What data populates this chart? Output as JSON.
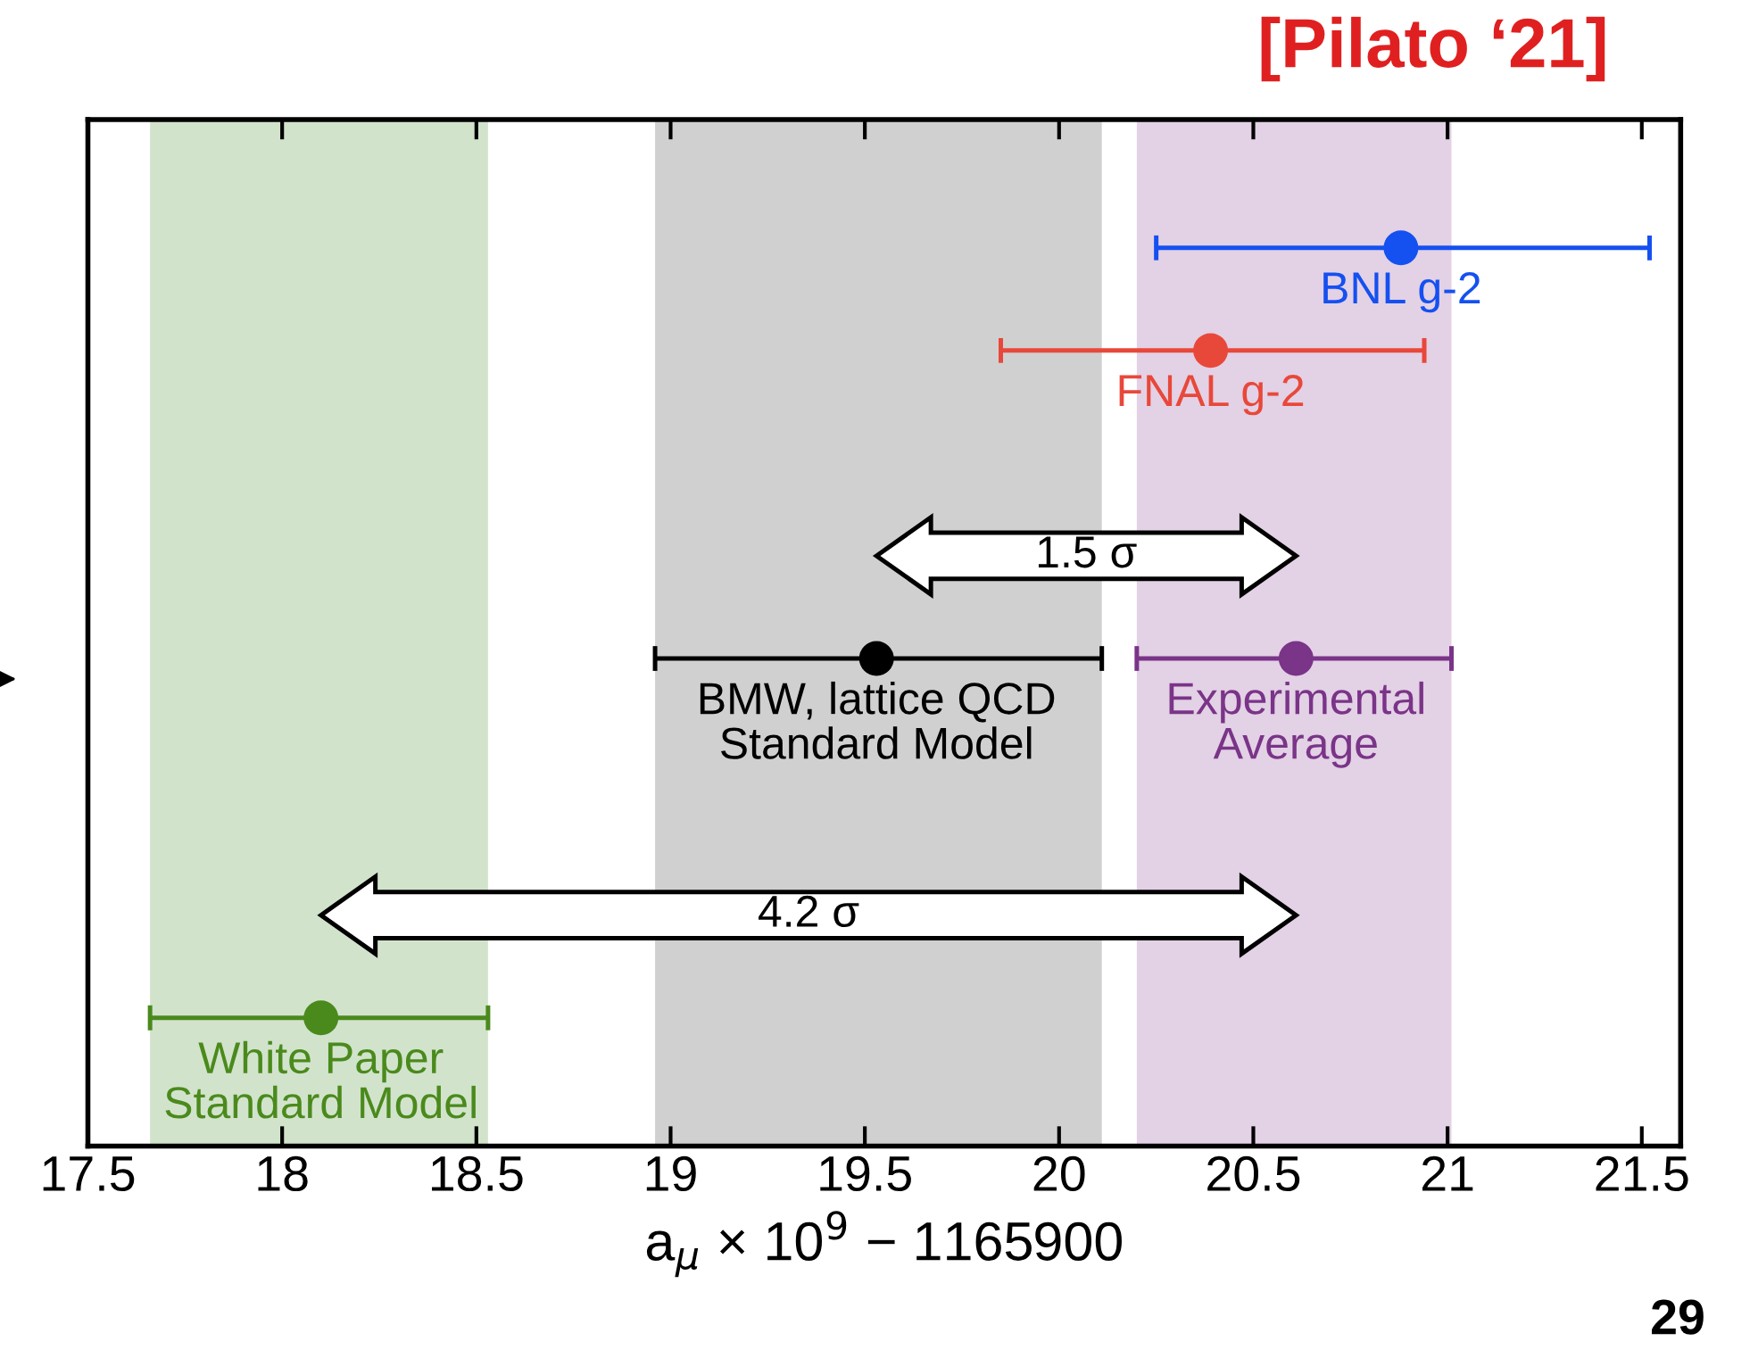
{
  "chart_data": {
    "type": "scatter",
    "orientation": "horizontal",
    "xlabel": "a$_{μ}$ × 10$^{9}$ − 1165900",
    "categories": [
      null,
      null,
      null,
      null,
      null,
      null,
      null,
      null,
      null,
      null,
      null,
      null,
      null,
      null,
      null,
      null,
      null,
      null,
      null,
      null
    ],
    "xlim": [
      17.5,
      21.6
    ],
    "xticks": [
      17.5,
      18,
      18.5,
      19,
      19.5,
      20,
      20.5,
      21,
      21.5
    ],
    "tick_labels": "x",
    "grid": false,
    "marker": "circle",
    "series": [
      {
        "name": "BNL g-2",
        "color": "#1550f0",
        "values": [
          null,
          null,
          20.88,
          null,
          null,
          null,
          null,
          null,
          null,
          null,
          null,
          null,
          null,
          null,
          null,
          null,
          null,
          null,
          null,
          null
        ],
        "errors": [
          null,
          null,
          [
            20.25,
            21.52
          ],
          null,
          null,
          null,
          null,
          null,
          null,
          null,
          null,
          null,
          null,
          null,
          null,
          null,
          null,
          null,
          null,
          null
        ]
      },
      {
        "name": "FNAL g-2",
        "color": "#e8483a",
        "values": [
          null,
          null,
          null,
          null,
          20.39,
          null,
          null,
          null,
          null,
          null,
          null,
          null,
          null,
          null,
          null,
          null,
          null,
          null,
          null,
          null
        ],
        "errors": [
          null,
          null,
          null,
          null,
          [
            19.85,
            20.94
          ],
          null,
          null,
          null,
          null,
          null,
          null,
          null,
          null,
          null,
          null,
          null,
          null,
          null,
          null,
          null
        ]
      },
      {
        "name": "Experimental\nAverage",
        "color": "#7a3488",
        "values": [
          null,
          null,
          null,
          null,
          null,
          null,
          null,
          null,
          null,
          null,
          20.61,
          null,
          null,
          null,
          null,
          null,
          null,
          null,
          null,
          null
        ],
        "errors": [
          null,
          null,
          null,
          null,
          null,
          null,
          null,
          null,
          null,
          null,
          [
            20.2,
            21.01
          ],
          null,
          null,
          null,
          null,
          null,
          null,
          null,
          null,
          null
        ]
      },
      {
        "name": "BMW, lattice QCD\nStandard Model",
        "color": "#000000",
        "values": [
          null,
          null,
          null,
          null,
          null,
          null,
          null,
          null,
          null,
          null,
          19.53,
          null,
          null,
          null,
          null,
          null,
          null,
          null,
          null,
          null
        ],
        "errors": [
          null,
          null,
          null,
          null,
          null,
          null,
          null,
          null,
          null,
          null,
          [
            18.96,
            20.11
          ],
          null,
          null,
          null,
          null,
          null,
          null,
          null,
          null,
          null
        ]
      },
      {
        "name": "White Paper\nStandard Model",
        "color": "#4a8a1c",
        "values": [
          null,
          null,
          null,
          null,
          null,
          null,
          null,
          null,
          null,
          null,
          null,
          null,
          null,
          null,
          null,
          null,
          null,
          18.1,
          null,
          null
        ],
        "errors": [
          null,
          null,
          null,
          null,
          null,
          null,
          null,
          null,
          null,
          null,
          null,
          null,
          null,
          null,
          null,
          null,
          null,
          [
            17.66,
            18.53
          ],
          null,
          null
        ]
      }
    ],
    "bands": [
      {
        "axis": "x",
        "from": 17.66,
        "to": 18.53,
        "color": "#d2e3cc"
      },
      {
        "axis": "x",
        "from": 18.96,
        "to": 20.11,
        "color": "#d0d0d0"
      },
      {
        "axis": "x",
        "from": 20.2,
        "to": 21.01,
        "color": "#e3d1e5"
      }
    ],
    "annotations": [
      "1.5 σ",
      "4.2 σ",
      "[Pilato ‘21]",
      "29"
    ]
  }
}
